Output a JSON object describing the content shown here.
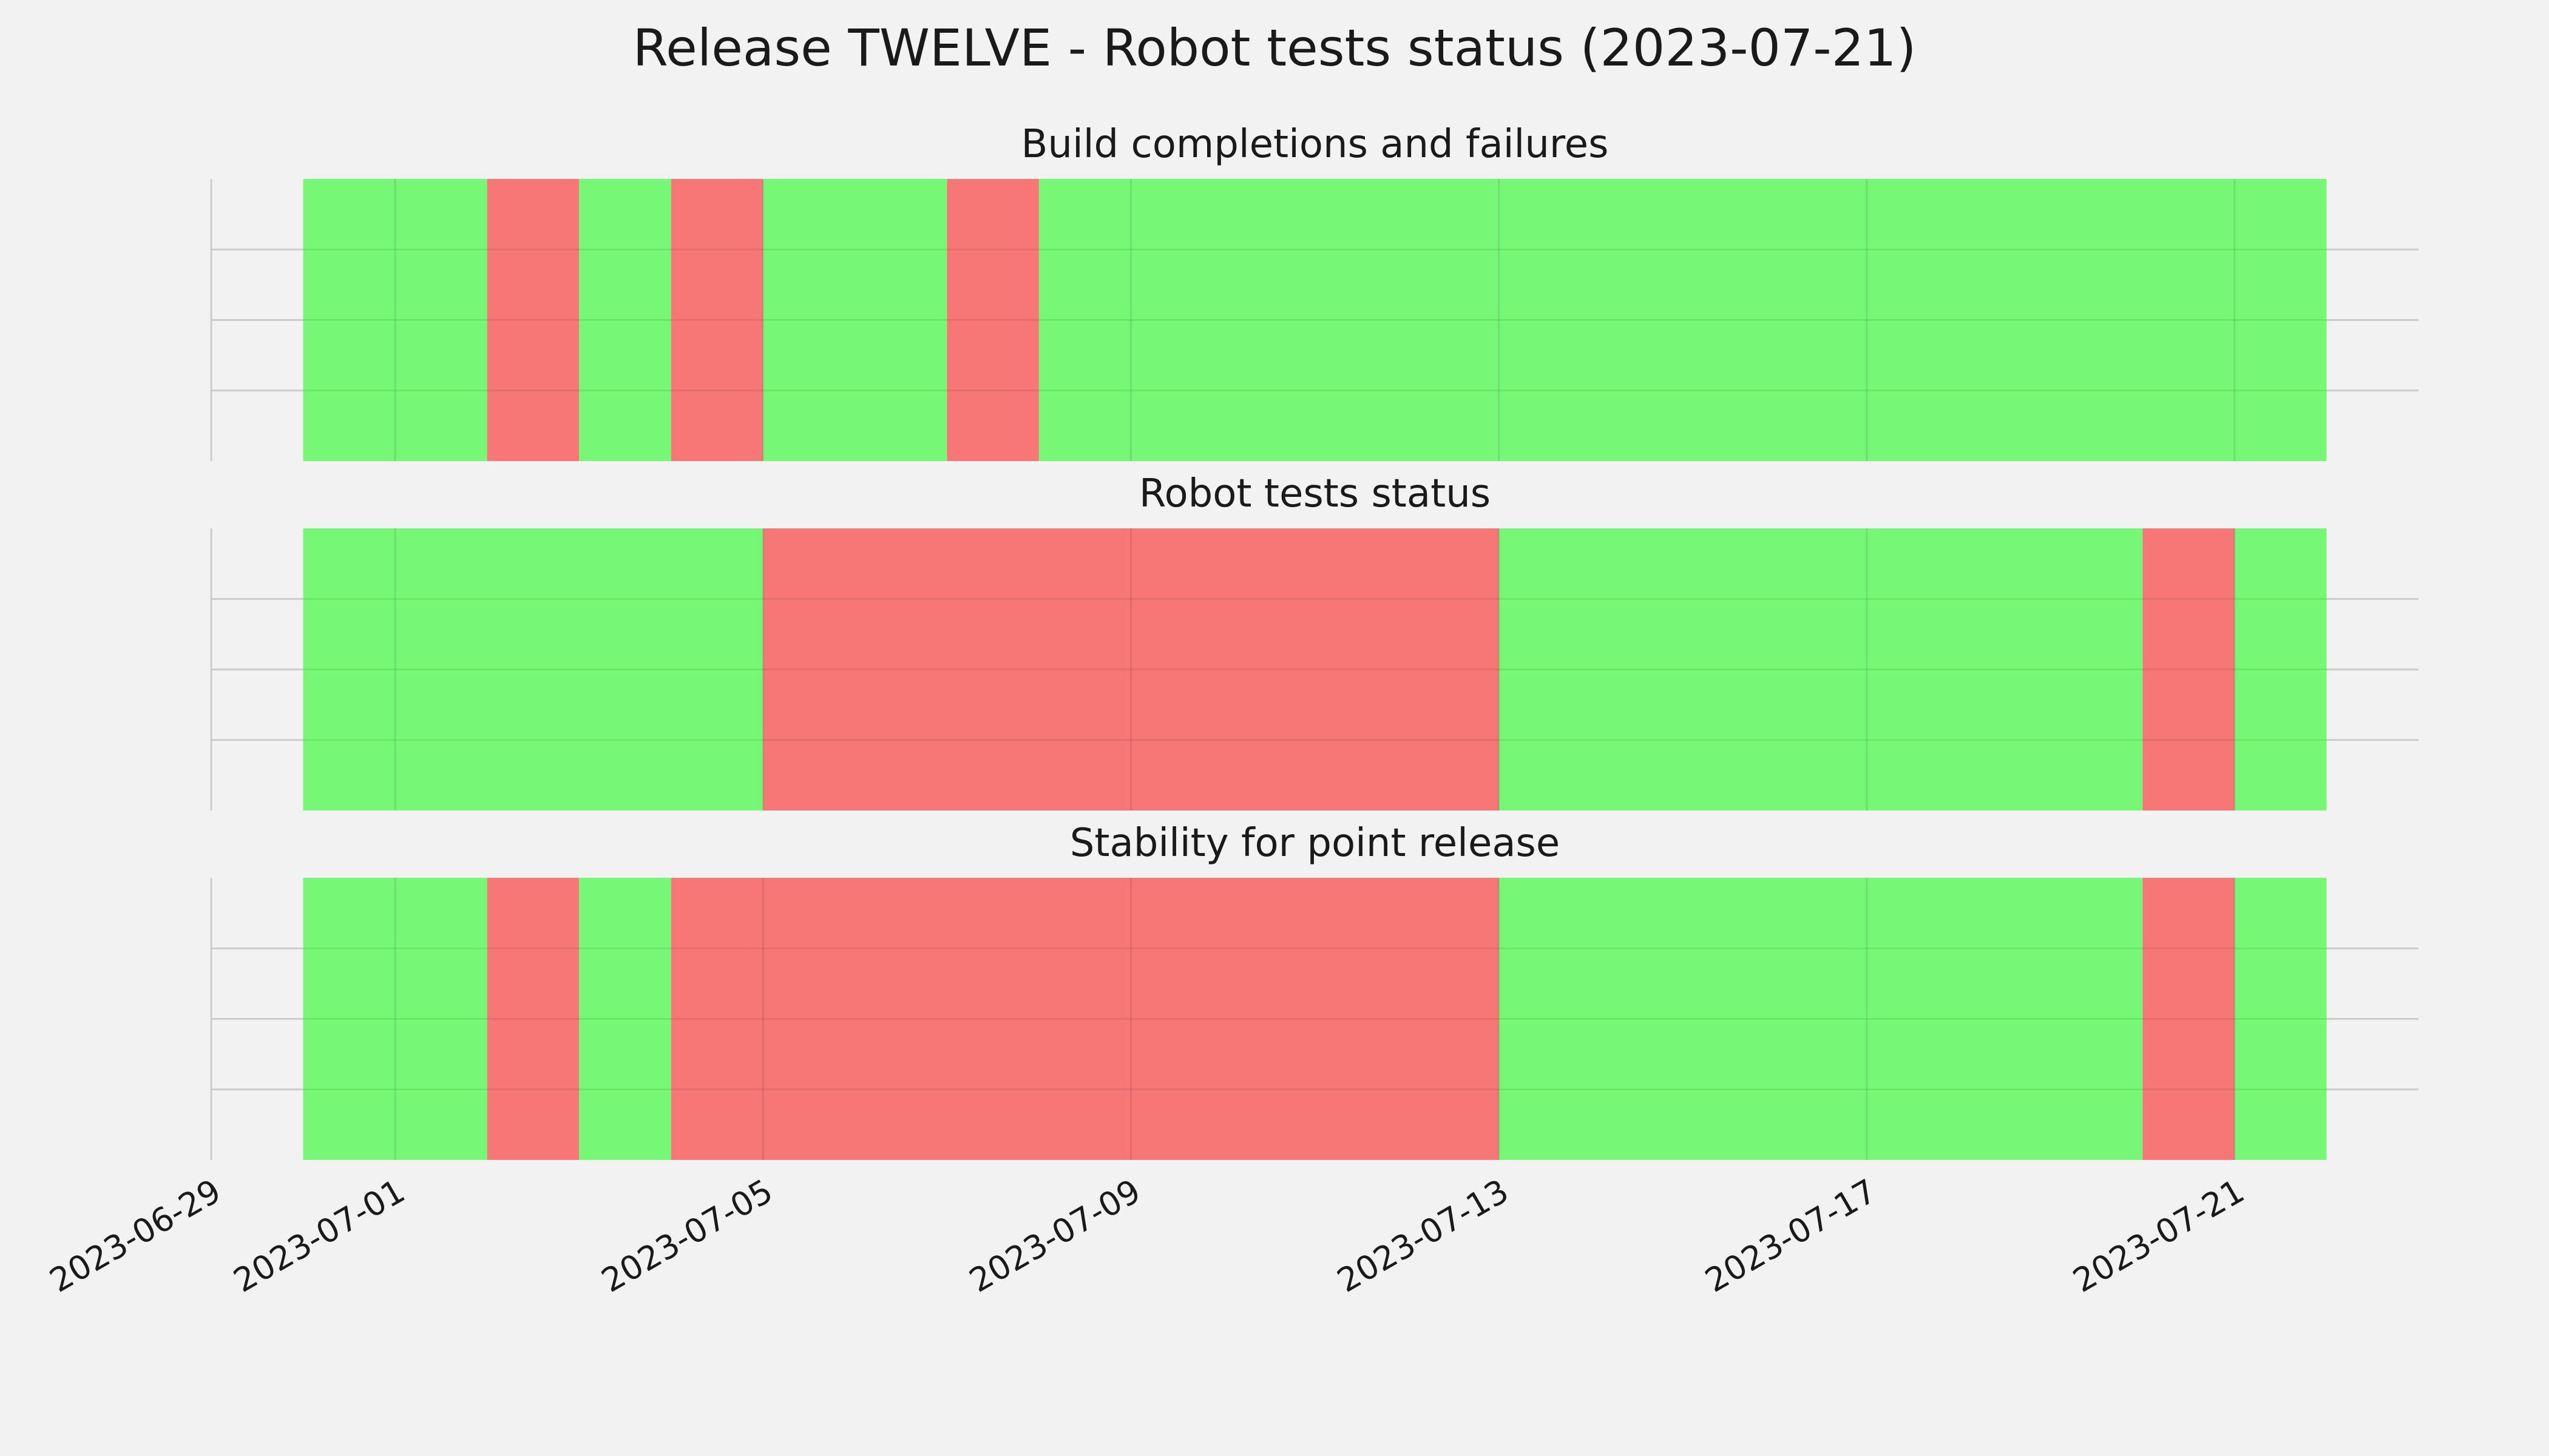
{
  "chart_data": {
    "type": "timeline",
    "title": "Release TWELVE - Robot tests status (2023-07-21)",
    "x_axis": {
      "type": "date",
      "range": [
        "2023-06-29",
        "2023-07-23"
      ],
      "tick_labels": [
        "2023-06-29",
        "2023-07-01",
        "2023-07-05",
        "2023-07-09",
        "2023-07-13",
        "2023-07-17",
        "2023-07-21"
      ]
    },
    "grid": true,
    "colors": {
      "pass": "#76f776",
      "fail": "#f77676"
    },
    "panels": [
      {
        "title": "Build completions and failures",
        "segments": [
          {
            "start": "2023-06-30",
            "end": "2023-07-02",
            "status": "pass"
          },
          {
            "start": "2023-07-02",
            "end": "2023-07-03",
            "status": "fail"
          },
          {
            "start": "2023-07-03",
            "end": "2023-07-04",
            "status": "pass"
          },
          {
            "start": "2023-07-04",
            "end": "2023-07-05",
            "status": "fail"
          },
          {
            "start": "2023-07-05",
            "end": "2023-07-07",
            "status": "pass"
          },
          {
            "start": "2023-07-07",
            "end": "2023-07-08",
            "status": "fail"
          },
          {
            "start": "2023-07-08",
            "end": "2023-07-22",
            "status": "pass"
          }
        ]
      },
      {
        "title": "Robot tests status",
        "segments": [
          {
            "start": "2023-06-30",
            "end": "2023-07-05",
            "status": "pass"
          },
          {
            "start": "2023-07-05",
            "end": "2023-07-13",
            "status": "fail"
          },
          {
            "start": "2023-07-13",
            "end": "2023-07-20",
            "status": "pass"
          },
          {
            "start": "2023-07-20",
            "end": "2023-07-21",
            "status": "fail"
          },
          {
            "start": "2023-07-21",
            "end": "2023-07-22",
            "status": "pass"
          }
        ]
      },
      {
        "title": "Stability for point release",
        "segments": [
          {
            "start": "2023-06-30",
            "end": "2023-07-02",
            "status": "pass"
          },
          {
            "start": "2023-07-02",
            "end": "2023-07-03",
            "status": "fail"
          },
          {
            "start": "2023-07-03",
            "end": "2023-07-04",
            "status": "pass"
          },
          {
            "start": "2023-07-04",
            "end": "2023-07-13",
            "status": "fail"
          },
          {
            "start": "2023-07-13",
            "end": "2023-07-20",
            "status": "pass"
          },
          {
            "start": "2023-07-20",
            "end": "2023-07-21",
            "status": "fail"
          },
          {
            "start": "2023-07-21",
            "end": "2023-07-22",
            "status": "pass"
          }
        ]
      }
    ]
  }
}
